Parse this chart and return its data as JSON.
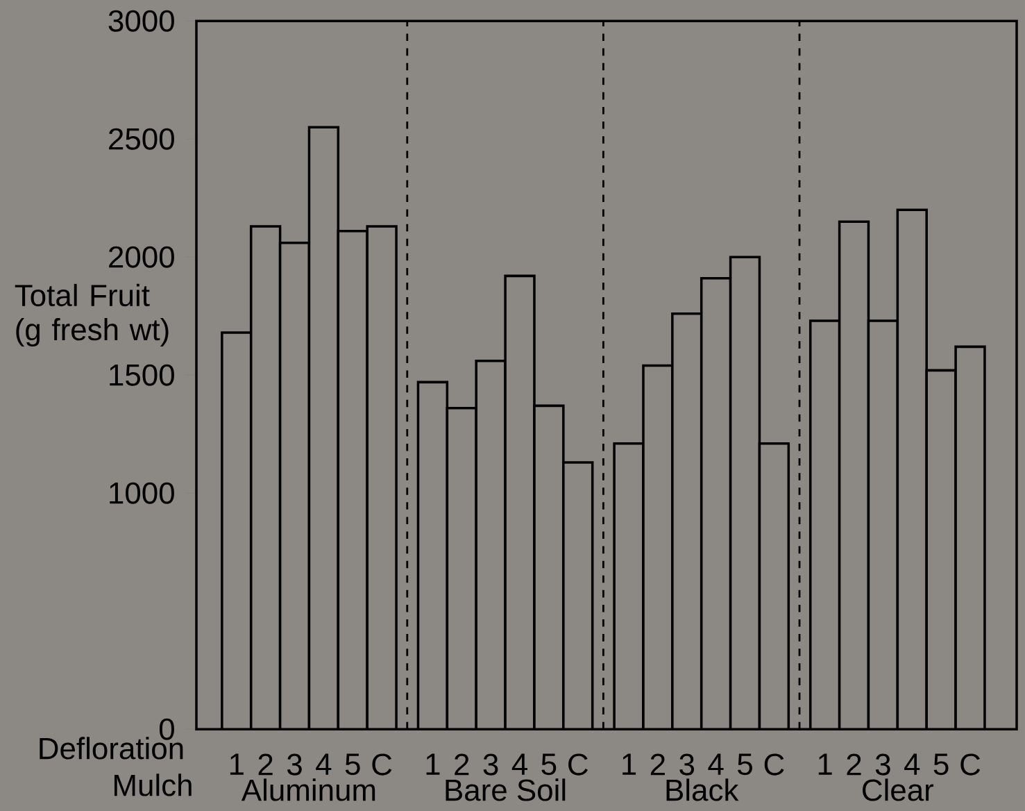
{
  "chart_data": {
    "type": "bar",
    "ylabel": "Total Fruit (g fresh wt)",
    "categories": [
      "1",
      "2",
      "3",
      "4",
      "5",
      "C",
      "1",
      "2",
      "3",
      "4",
      "5",
      "C",
      "1",
      "2",
      "3",
      "4",
      "5",
      "C",
      "1",
      "2",
      "3",
      "4",
      "5",
      "C"
    ],
    "values": [
      1680,
      2130,
      2060,
      2550,
      2110,
      2130,
      1470,
      1360,
      1560,
      1920,
      1370,
      1130,
      1210,
      1540,
      1760,
      1910,
      2000,
      1210,
      1730,
      2150,
      1730,
      2200,
      1520,
      1620
    ],
    "color": "#8c8884",
    "ylim": [
      0,
      3000
    ],
    "yticks": [
      0,
      1000,
      1500,
      2000,
      2500,
      3000
    ],
    "annotations": [
      "Defloration",
      "Mulch",
      "Aluminum",
      "Bare Soil",
      "Black",
      "Clear"
    ]
  }
}
